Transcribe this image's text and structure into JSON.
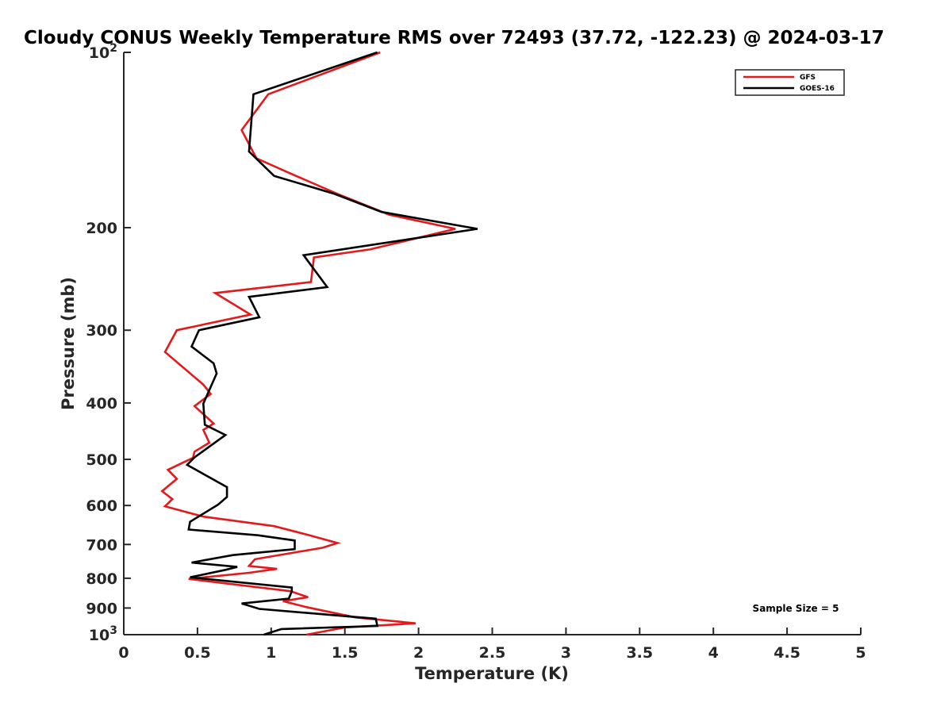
{
  "chart_data": {
    "type": "line",
    "title": "Cloudy CONUS Weekly Temperature RMS over 72493 (37.72, -122.23) @ 2024-03-17",
    "xlabel": "Temperature (K)",
    "ylabel": "Pressure (mb)",
    "xlim": [
      0,
      5
    ],
    "ylim": [
      1000,
      100
    ],
    "y_scale": "log",
    "y_reversed": true,
    "grid": false,
    "legend_position": "top-right",
    "x_ticks": [
      "0",
      "0.5",
      "1",
      "1.5",
      "2",
      "2.5",
      "3",
      "3.5",
      "4",
      "4.5",
      "5"
    ],
    "y_ticks": [
      {
        "value": 100,
        "label": "10",
        "sup": "2"
      },
      {
        "value": 200,
        "label": "200",
        "sup": ""
      },
      {
        "value": 300,
        "label": "300",
        "sup": ""
      },
      {
        "value": 400,
        "label": "400",
        "sup": ""
      },
      {
        "value": 500,
        "label": "500",
        "sup": ""
      },
      {
        "value": 600,
        "label": "600",
        "sup": ""
      },
      {
        "value": 700,
        "label": "700",
        "sup": ""
      },
      {
        "value": 800,
        "label": "800",
        "sup": ""
      },
      {
        "value": 900,
        "label": "900",
        "sup": ""
      },
      {
        "value": 1000,
        "label": "10",
        "sup": "3"
      }
    ],
    "series": [
      {
        "name": "GFS",
        "color": "#e31a1c",
        "points": [
          [
            1.74,
            100
          ],
          [
            0.98,
            118
          ],
          [
            0.8,
            136
          ],
          [
            0.9,
            152
          ],
          [
            1.12,
            161
          ],
          [
            1.45,
            175
          ],
          [
            1.8,
            190
          ],
          [
            2.25,
            201
          ],
          [
            1.67,
            218
          ],
          [
            1.29,
            225
          ],
          [
            1.27,
            248
          ],
          [
            0.62,
            259
          ],
          [
            0.86,
            282
          ],
          [
            0.36,
            300
          ],
          [
            0.28,
            327
          ],
          [
            0.54,
            372
          ],
          [
            0.59,
            386
          ],
          [
            0.48,
            405
          ],
          [
            0.61,
            434
          ],
          [
            0.54,
            445
          ],
          [
            0.58,
            468
          ],
          [
            0.48,
            485
          ],
          [
            0.47,
            497
          ],
          [
            0.3,
            521
          ],
          [
            0.36,
            540
          ],
          [
            0.26,
            567
          ],
          [
            0.33,
            585
          ],
          [
            0.28,
            602
          ],
          [
            0.54,
            627
          ],
          [
            1.02,
            651
          ],
          [
            1.27,
            676
          ],
          [
            1.45,
            696
          ],
          [
            1.35,
            709
          ],
          [
            0.89,
            742
          ],
          [
            0.85,
            762
          ],
          [
            1.04,
            771
          ],
          [
            0.85,
            783
          ],
          [
            0.44,
            802
          ],
          [
            1.13,
            842
          ],
          [
            1.25,
            862
          ],
          [
            1.08,
            876
          ],
          [
            1.24,
            897
          ],
          [
            1.57,
            934
          ],
          [
            1.98,
            956
          ],
          [
            1.5,
            972
          ],
          [
            1.24,
            1000
          ]
        ]
      },
      {
        "name": "GOES-16",
        "color": "#000000",
        "points": [
          [
            1.72,
            100
          ],
          [
            0.88,
            118
          ],
          [
            0.85,
            148
          ],
          [
            1.02,
            163
          ],
          [
            1.43,
            175
          ],
          [
            1.75,
            188
          ],
          [
            2.4,
            201
          ],
          [
            1.22,
            223
          ],
          [
            1.38,
            253
          ],
          [
            0.85,
            263
          ],
          [
            0.92,
            285
          ],
          [
            0.51,
            300
          ],
          [
            0.46,
            320
          ],
          [
            0.61,
            342
          ],
          [
            0.63,
            356
          ],
          [
            0.54,
            401
          ],
          [
            0.55,
            436
          ],
          [
            0.69,
            454
          ],
          [
            0.48,
            496
          ],
          [
            0.43,
            511
          ],
          [
            0.7,
            558
          ],
          [
            0.7,
            580
          ],
          [
            0.64,
            598
          ],
          [
            0.45,
            640
          ],
          [
            0.44,
            660
          ],
          [
            0.91,
            675
          ],
          [
            1.16,
            689
          ],
          [
            1.16,
            713
          ],
          [
            0.74,
            730
          ],
          [
            0.46,
            752
          ],
          [
            0.77,
            765
          ],
          [
            0.69,
            774
          ],
          [
            0.45,
            797
          ],
          [
            1.14,
            830
          ],
          [
            1.14,
            842
          ],
          [
            1.12,
            867
          ],
          [
            0.8,
            884
          ],
          [
            0.92,
            903
          ],
          [
            1.71,
            939
          ],
          [
            1.72,
            966
          ],
          [
            1.07,
            978
          ],
          [
            0.95,
            1000
          ]
        ]
      }
    ],
    "annotations": [
      "Sample Size = 5"
    ]
  }
}
